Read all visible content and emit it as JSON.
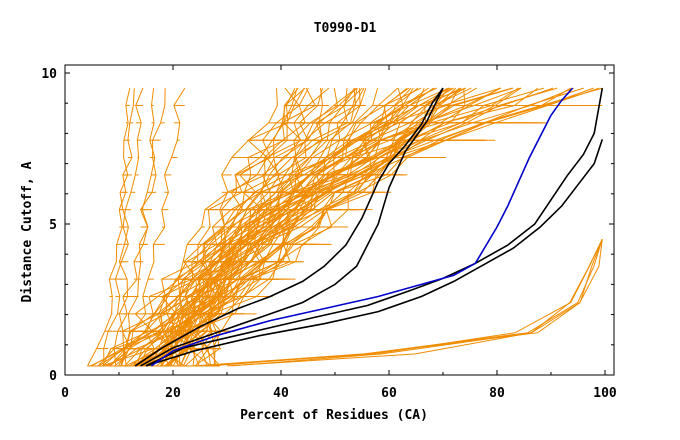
{
  "chart_data": {
    "type": "line",
    "title": "T0990-D1",
    "xlabel": "Percent of Residues (CA)",
    "ylabel": "Distance Cutoff, A",
    "xlim": [
      0,
      100
    ],
    "ylim": [
      0,
      10
    ],
    "x_ticks": [
      "0",
      "20",
      "40",
      "60",
      "80",
      "100"
    ],
    "y_ticks": [
      "0",
      "5",
      "10"
    ],
    "grid": false,
    "colors": {
      "background_series": "#f08c00",
      "black_series": "#000000",
      "highlight": "#0000cc"
    },
    "series": [
      {
        "color": "black",
        "points": [
          [
            13,
            0.3
          ],
          [
            18,
            0.9
          ],
          [
            25,
            1.6
          ],
          [
            32,
            2.2
          ],
          [
            38,
            2.6
          ],
          [
            44,
            3.1
          ],
          [
            48,
            3.6
          ],
          [
            52,
            4.3
          ],
          [
            55,
            5.2
          ],
          [
            58,
            6.4
          ],
          [
            60,
            7.0
          ],
          [
            63,
            7.6
          ],
          [
            66,
            8.3
          ],
          [
            68,
            9.0
          ],
          [
            70,
            9.5
          ]
        ]
      },
      {
        "color": "black",
        "points": [
          [
            14,
            0.3
          ],
          [
            20,
            0.9
          ],
          [
            28,
            1.4
          ],
          [
            36,
            1.9
          ],
          [
            44,
            2.4
          ],
          [
            50,
            3.0
          ],
          [
            54,
            3.6
          ],
          [
            56,
            4.3
          ],
          [
            58,
            5.0
          ],
          [
            60,
            6.2
          ],
          [
            63,
            7.4
          ],
          [
            67,
            8.4
          ],
          [
            70,
            9.5
          ]
        ]
      },
      {
        "color": "black",
        "points": [
          [
            15,
            0.3
          ],
          [
            22,
            0.9
          ],
          [
            34,
            1.4
          ],
          [
            46,
            1.9
          ],
          [
            56,
            2.3
          ],
          [
            64,
            2.8
          ],
          [
            70,
            3.2
          ],
          [
            76,
            3.7
          ],
          [
            82,
            4.3
          ],
          [
            87,
            5.0
          ],
          [
            90,
            5.8
          ],
          [
            93,
            6.6
          ],
          [
            96,
            7.3
          ],
          [
            98,
            8.0
          ],
          [
            99.5,
            9.5
          ]
        ]
      },
      {
        "color": "black",
        "points": [
          [
            15,
            0.3
          ],
          [
            24,
            0.8
          ],
          [
            36,
            1.3
          ],
          [
            48,
            1.7
          ],
          [
            58,
            2.1
          ],
          [
            66,
            2.6
          ],
          [
            72,
            3.1
          ],
          [
            78,
            3.7
          ],
          [
            83,
            4.2
          ],
          [
            88,
            4.9
          ],
          [
            92,
            5.6
          ],
          [
            95,
            6.3
          ],
          [
            98,
            7.0
          ],
          [
            99.5,
            7.8
          ]
        ]
      },
      {
        "color": "blue",
        "points": [
          [
            16,
            0.3
          ],
          [
            20,
            0.8
          ],
          [
            28,
            1.3
          ],
          [
            38,
            1.8
          ],
          [
            48,
            2.2
          ],
          [
            58,
            2.6
          ],
          [
            66,
            3.0
          ],
          [
            72,
            3.3
          ],
          [
            76,
            3.7
          ],
          [
            78,
            4.3
          ],
          [
            80,
            4.9
          ],
          [
            82,
            5.6
          ],
          [
            84,
            6.4
          ],
          [
            86,
            7.2
          ],
          [
            88,
            7.9
          ],
          [
            90,
            8.6
          ],
          [
            92,
            9.1
          ],
          [
            94,
            9.5
          ]
        ]
      }
    ]
  }
}
